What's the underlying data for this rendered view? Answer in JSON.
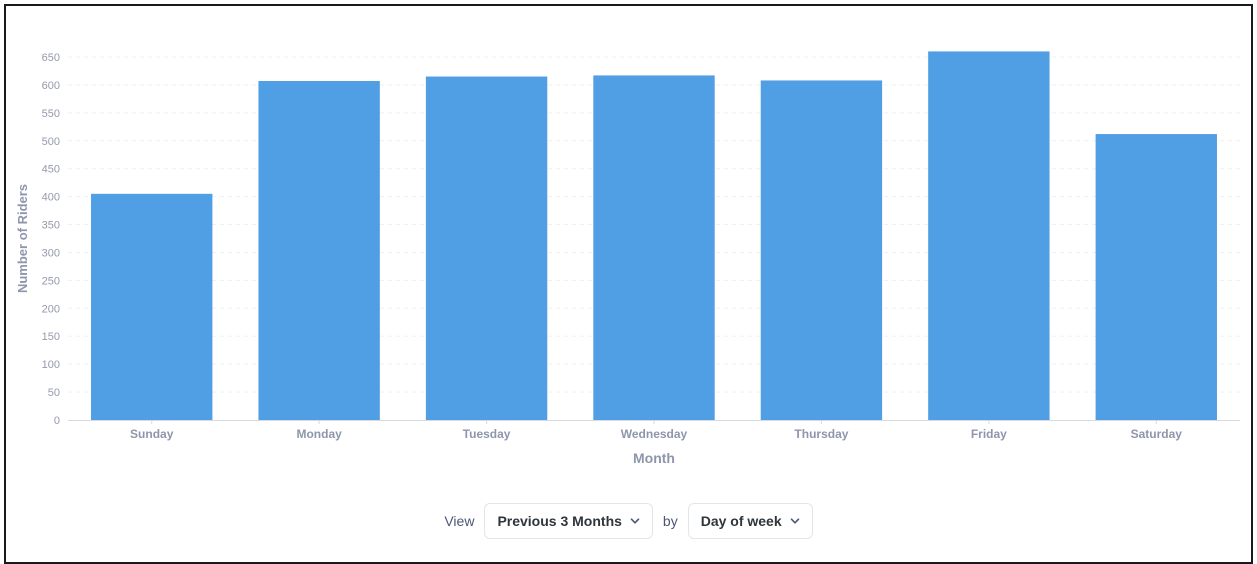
{
  "colors": {
    "bar": "#509ee3",
    "axis_text": "#949aab",
    "label_text": "#8e96ab",
    "grid": "#eef0f3"
  },
  "chart_data": {
    "type": "bar",
    "categories": [
      "Sunday",
      "Monday",
      "Tuesday",
      "Wednesday",
      "Thursday",
      "Friday",
      "Saturday"
    ],
    "values": [
      405,
      607,
      615,
      617,
      608,
      660,
      512
    ],
    "xlabel": "Month",
    "ylabel": "Number of Riders",
    "ylim": [
      0,
      650
    ],
    "yticks": [
      0,
      50,
      100,
      150,
      200,
      250,
      300,
      350,
      400,
      450,
      500,
      550,
      600,
      650
    ],
    "grid": true,
    "legend": "none"
  },
  "controls": {
    "view_label": "View",
    "period_value": "Previous 3 Months",
    "by_label": "by",
    "grouping_value": "Day of week"
  },
  "icons": {
    "dropdown": "chevron-down-icon"
  }
}
